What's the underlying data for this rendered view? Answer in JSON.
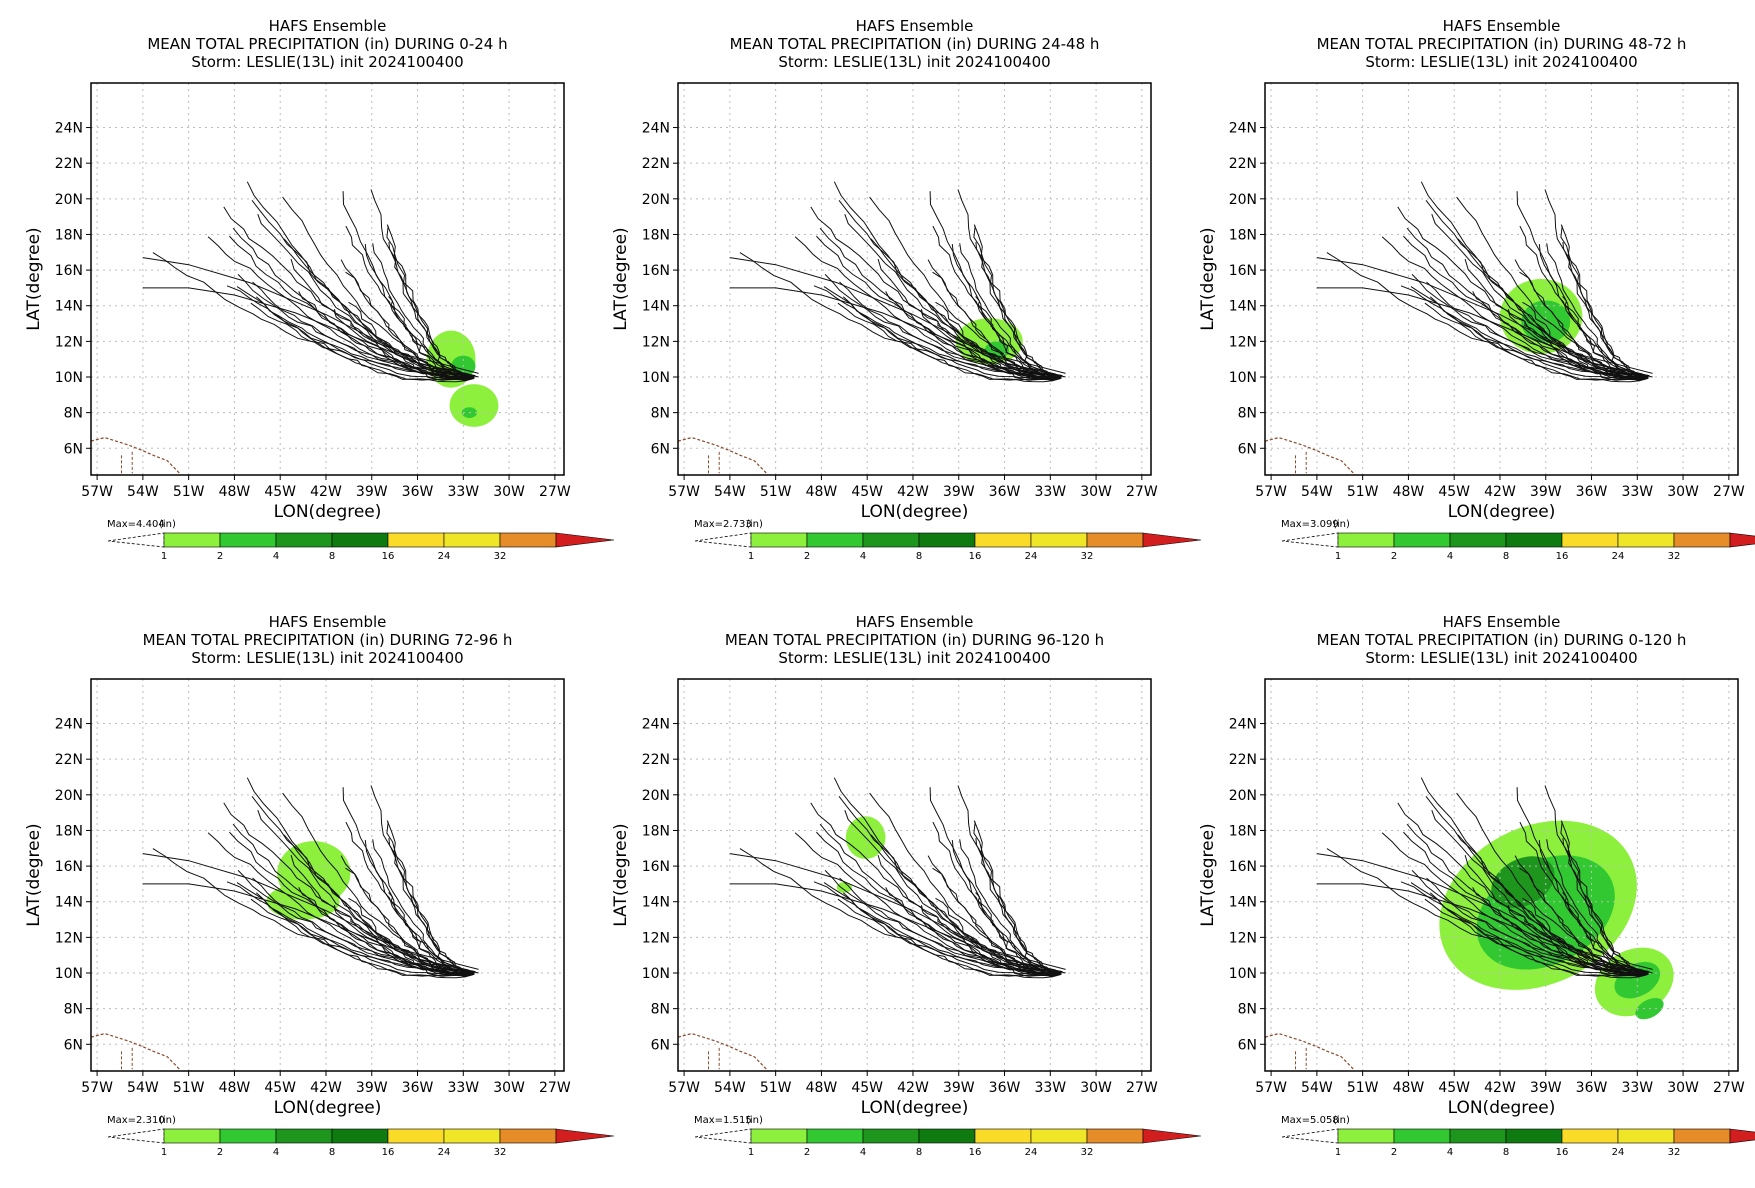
{
  "ensemble_title": "HAFS Ensemble",
  "storm_line": "Storm: LESLIE(13L) init 2024100400",
  "xlabel": "LON(degree)",
  "ylabel": "LAT(degree)",
  "x_ticks": [
    "57W",
    "54W",
    "51W",
    "48W",
    "45W",
    "42W",
    "39W",
    "36W",
    "33W",
    "30W",
    "27W"
  ],
  "y_ticks": [
    "24N",
    "22N",
    "20N",
    "18N",
    "16N",
    "14N",
    "12N",
    "10N",
    "8N",
    "6N"
  ],
  "colorbar": {
    "units": "(in)",
    "levels": [
      "1",
      "2",
      "4",
      "8",
      "16",
      "24",
      "32"
    ],
    "colors": [
      "#8cf03c",
      "#32c832",
      "#1e961e",
      "#0f7a0f",
      "#fadc28",
      "#f0e628",
      "#e68c28",
      "#d21e1e"
    ]
  },
  "colors": {
    "frame": "#000000",
    "grid": "#bdbdbd",
    "tracks": "#111111",
    "coast": "#8b4a2b"
  },
  "panels": [
    {
      "title": "MEAN TOTAL PRECIPITATION (in) DURING  0-24 h",
      "max_label": "Max=4.404"
    },
    {
      "title": "MEAN TOTAL PRECIPITATION (in) DURING 24-48 h",
      "max_label": "Max=2.733"
    },
    {
      "title": "MEAN TOTAL PRECIPITATION (in) DURING 48-72 h",
      "max_label": "Max=3.099"
    },
    {
      "title": "MEAN TOTAL PRECIPITATION (in) DURING 72-96 h",
      "max_label": "Max=2.310"
    },
    {
      "title": "MEAN TOTAL PRECIPITATION (in) DURING 96-120 h",
      "max_label": "Max=1.515"
    },
    {
      "title": "MEAN TOTAL PRECIPITATION (in) DURING 0-120 h",
      "max_label": "Max=5.058"
    }
  ]
}
